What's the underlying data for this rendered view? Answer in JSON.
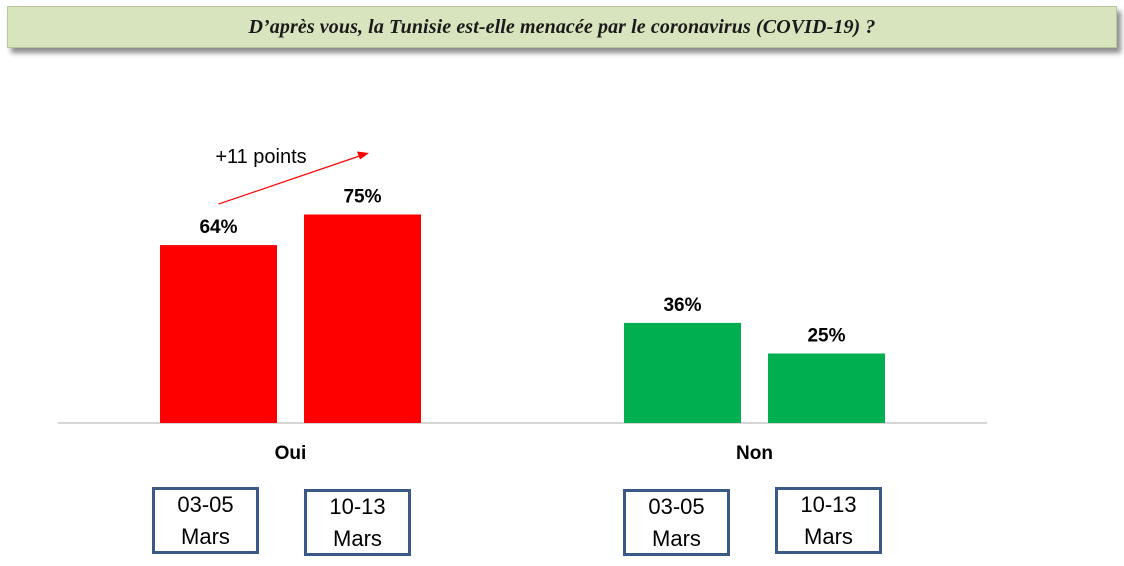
{
  "title": "D’après vous, la Tunisie est-elle menacée par le coronavirus (COVID-19) ?",
  "chart_data": {
    "type": "bar",
    "title": "D’après vous, la Tunisie est-elle menacée par le coronavirus (COVID-19) ?",
    "categories": [
      "Oui",
      "Non"
    ],
    "series": [
      {
        "name": "03-05 Mars",
        "values": [
          64,
          36
        ]
      },
      {
        "name": "10-13 Mars",
        "values": [
          75,
          25
        ]
      }
    ],
    "value_suffix": "%",
    "bar_colors": {
      "Oui": "#ff0000",
      "Non": "#00b050"
    },
    "ylim": [
      0,
      100
    ],
    "grid": false,
    "annotation": {
      "text": "+11 points",
      "category": "Oui"
    }
  },
  "date_labels": {
    "oui": [
      "03-05 Mars",
      "10-13 Mars"
    ],
    "non": [
      "03-05 Mars",
      "10-13 Mars"
    ]
  }
}
